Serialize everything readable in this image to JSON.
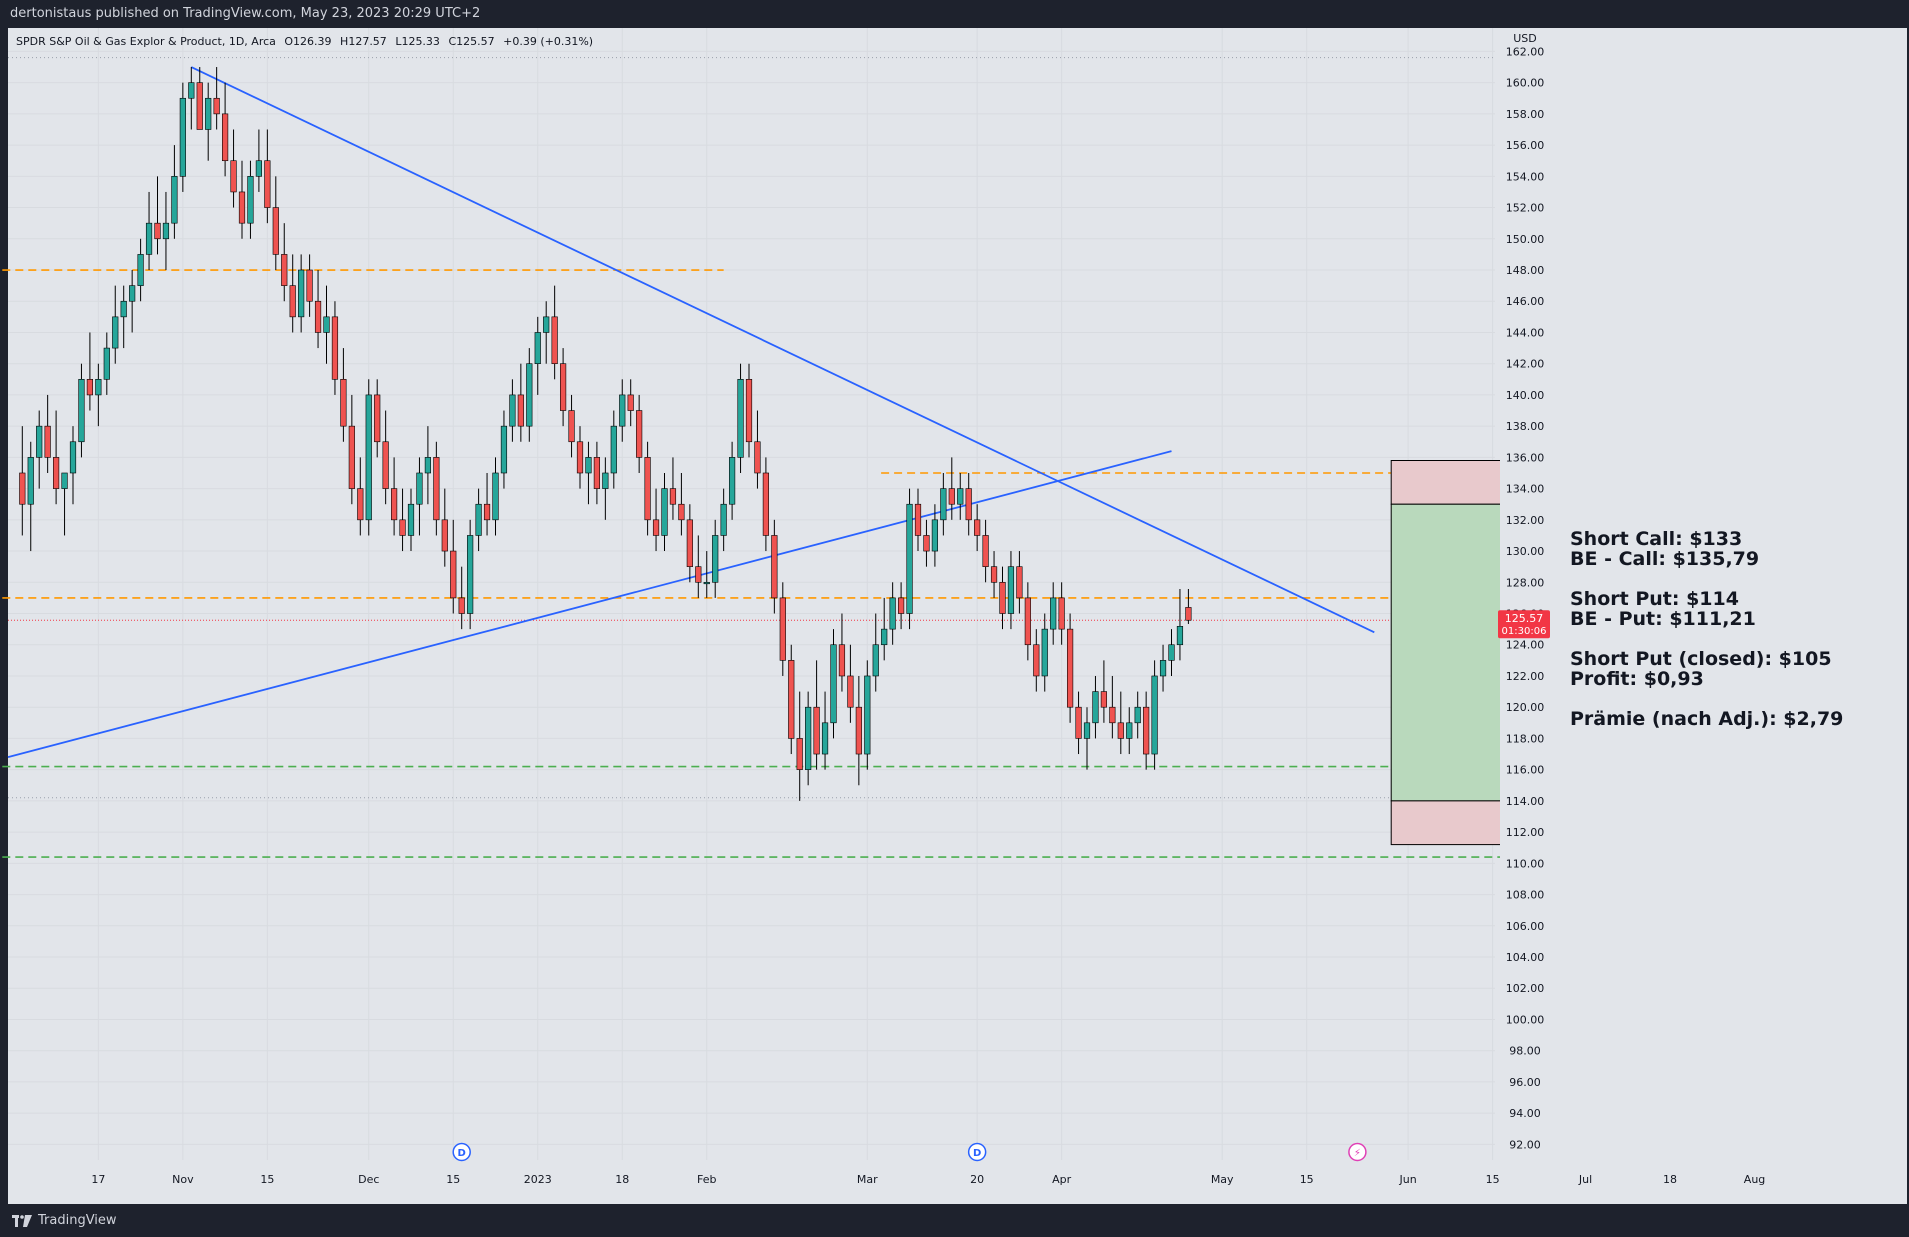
{
  "header": {
    "publisher_line": "dertonistaus published on TradingView.com, May 23, 2023 20:29 UTC+2"
  },
  "legend": {
    "symbol": "SPDR S&P Oil & Gas Explor & Product, 1D, Arca",
    "open": "O126.39",
    "high": "H127.57",
    "low": "L125.33",
    "close": "C125.57",
    "change": "+0.39 (+0.31%)"
  },
  "footer": {
    "brand": "TradingView"
  },
  "price_axis": {
    "currency": "USD",
    "last_price": "125.57",
    "countdown": "01:30:06"
  },
  "annotations": [
    "Short Call: $133",
    "BE - Call: $135,79",
    "Short Put: $114",
    "BE - Put: $111,21",
    "Short Put (closed): $105",
    "Profit: $0,93",
    "Prämie (nach Adj.): $2,79"
  ],
  "colors": {
    "up_candle": "#26a69a",
    "down_candle": "#ef5350",
    "trendline": "#2962ff",
    "resistance_line": "#ff9800",
    "support_line": "#4caf50",
    "last_price_tag": "#f23645",
    "profit_zone": "#b9d9bc",
    "loss_zone": "#e8c9cc"
  },
  "icons": [
    "dividend-marker-icon",
    "earnings-flash-icon",
    "tradingview-logo-icon"
  ],
  "chart_data": {
    "type": "candlestick",
    "title": "SPDR S&P Oil & Gas Explor & Product, 1D, Arca",
    "ylabel": "USD",
    "ylim": [
      91,
      163.5
    ],
    "y_ticks": [
      92,
      94,
      96,
      98,
      100,
      102,
      104,
      106,
      108,
      110,
      112,
      114,
      116,
      118,
      120,
      122,
      124,
      126,
      128,
      130,
      132,
      134,
      136,
      138,
      140,
      142,
      144,
      146,
      148,
      150,
      152,
      154,
      156,
      158,
      160,
      162
    ],
    "x_ticks": [
      {
        "label": "17",
        "i": 9
      },
      {
        "label": "Nov",
        "i": 19
      },
      {
        "label": "15",
        "i": 29
      },
      {
        "label": "Dec",
        "i": 41
      },
      {
        "label": "15",
        "i": 51
      },
      {
        "label": "2023",
        "i": 61
      },
      {
        "label": "18",
        "i": 71
      },
      {
        "label": "Feb",
        "i": 81
      },
      {
        "label": "Mar",
        "i": 100
      },
      {
        "label": "20",
        "i": 113
      },
      {
        "label": "Apr",
        "i": 123
      },
      {
        "label": "May",
        "i": 142
      },
      {
        "label": "15",
        "i": 152
      },
      {
        "label": "Jun",
        "i": 164
      },
      {
        "label": "15",
        "i": 174
      },
      {
        "label": "Jul",
        "i": 185
      },
      {
        "label": "18",
        "i": 195
      },
      {
        "label": "Aug",
        "i": 205
      }
    ],
    "candles": [
      [
        135,
        138,
        131,
        133
      ],
      [
        133,
        137,
        130,
        136
      ],
      [
        136,
        139,
        134,
        138
      ],
      [
        138,
        140,
        135,
        136
      ],
      [
        136,
        139,
        133,
        134
      ],
      [
        134,
        135,
        131,
        135
      ],
      [
        135,
        138,
        133,
        137
      ],
      [
        137,
        142,
        136,
        141
      ],
      [
        141,
        144,
        139,
        140
      ],
      [
        140,
        142,
        138,
        141
      ],
      [
        141,
        144,
        140,
        143
      ],
      [
        143,
        147,
        142,
        145
      ],
      [
        145,
        147,
        143,
        146
      ],
      [
        146,
        148,
        144,
        147
      ],
      [
        147,
        150,
        146,
        149
      ],
      [
        149,
        153,
        148,
        151
      ],
      [
        151,
        154,
        149,
        150
      ],
      [
        150,
        153,
        148,
        151
      ],
      [
        151,
        156,
        150,
        154
      ],
      [
        154,
        160,
        153,
        159
      ],
      [
        159,
        161,
        157,
        160
      ],
      [
        160,
        161,
        157,
        157
      ],
      [
        157,
        160,
        155,
        159
      ],
      [
        159,
        161,
        157,
        158
      ],
      [
        158,
        160,
        154,
        155
      ],
      [
        155,
        157,
        152,
        153
      ],
      [
        153,
        155,
        150,
        151
      ],
      [
        151,
        155,
        150,
        154
      ],
      [
        154,
        157,
        153,
        155
      ],
      [
        155,
        157,
        151,
        152
      ],
      [
        152,
        154,
        148,
        149
      ],
      [
        149,
        151,
        146,
        147
      ],
      [
        147,
        149,
        144,
        145
      ],
      [
        145,
        149,
        144,
        148
      ],
      [
        148,
        149,
        145,
        146
      ],
      [
        146,
        148,
        143,
        144
      ],
      [
        144,
        147,
        142,
        145
      ],
      [
        145,
        146,
        140,
        141
      ],
      [
        141,
        143,
        137,
        138
      ],
      [
        138,
        140,
        133,
        134
      ],
      [
        134,
        136,
        131,
        132
      ],
      [
        132,
        141,
        131,
        140
      ],
      [
        140,
        141,
        136,
        137
      ],
      [
        137,
        139,
        133,
        134
      ],
      [
        134,
        136,
        131,
        132
      ],
      [
        132,
        134,
        130,
        131
      ],
      [
        131,
        134,
        130,
        133
      ],
      [
        133,
        136,
        131,
        135
      ],
      [
        135,
        138,
        133,
        136
      ],
      [
        136,
        137,
        131,
        132
      ],
      [
        132,
        134,
        129,
        130
      ],
      [
        130,
        132,
        126,
        127
      ],
      [
        127,
        129,
        125,
        126
      ],
      [
        126,
        132,
        125,
        131
      ],
      [
        131,
        134,
        130,
        133
      ],
      [
        133,
        135,
        131,
        132
      ],
      [
        132,
        136,
        131,
        135
      ],
      [
        135,
        139,
        134,
        138
      ],
      [
        138,
        141,
        137,
        140
      ],
      [
        140,
        142,
        137,
        138
      ],
      [
        138,
        143,
        137,
        142
      ],
      [
        142,
        145,
        140,
        144
      ],
      [
        144,
        146,
        142,
        145
      ],
      [
        145,
        147,
        141,
        142
      ],
      [
        142,
        143,
        138,
        139
      ],
      [
        139,
        140,
        136,
        137
      ],
      [
        137,
        138,
        134,
        135
      ],
      [
        135,
        137,
        133,
        136
      ],
      [
        136,
        137,
        133,
        134
      ],
      [
        134,
        136,
        132,
        135
      ],
      [
        135,
        139,
        134,
        138
      ],
      [
        138,
        141,
        137,
        140
      ],
      [
        140,
        141,
        138,
        139
      ],
      [
        139,
        140,
        135,
        136
      ],
      [
        136,
        137,
        131,
        132
      ],
      [
        132,
        134,
        130,
        131
      ],
      [
        131,
        135,
        130,
        134
      ],
      [
        134,
        136,
        132,
        133
      ],
      [
        133,
        135,
        131,
        132
      ],
      [
        132,
        133,
        128,
        129
      ],
      [
        129,
        131,
        127,
        128
      ],
      [
        128,
        130,
        127,
        128
      ],
      [
        128,
        132,
        127,
        131
      ],
      [
        131,
        134,
        130,
        133
      ],
      [
        133,
        137,
        132,
        136
      ],
      [
        136,
        142,
        135,
        141
      ],
      [
        141,
        142,
        136,
        137
      ],
      [
        137,
        139,
        134,
        135
      ],
      [
        135,
        136,
        130,
        131
      ],
      [
        131,
        132,
        126,
        127
      ],
      [
        127,
        128,
        122,
        123
      ],
      [
        123,
        124,
        117,
        118
      ],
      [
        118,
        121,
        114,
        116
      ],
      [
        116,
        121,
        115,
        120
      ],
      [
        120,
        123,
        116,
        117
      ],
      [
        117,
        121,
        116,
        119
      ],
      [
        119,
        125,
        118,
        124
      ],
      [
        124,
        126,
        121,
        122
      ],
      [
        122,
        124,
        119,
        120
      ],
      [
        120,
        122,
        115,
        117
      ],
      [
        117,
        123,
        116,
        122
      ],
      [
        122,
        126,
        121,
        124
      ],
      [
        124,
        127,
        123,
        125
      ],
      [
        125,
        128,
        124,
        127
      ],
      [
        127,
        128,
        125,
        126
      ],
      [
        126,
        134,
        125,
        133
      ],
      [
        133,
        134,
        130,
        131
      ],
      [
        131,
        132,
        129,
        130
      ],
      [
        130,
        133,
        129,
        132
      ],
      [
        132,
        135,
        131,
        134
      ],
      [
        134,
        136,
        132,
        133
      ],
      [
        133,
        135,
        132,
        134
      ],
      [
        134,
        135,
        131,
        132
      ],
      [
        132,
        133,
        130,
        131
      ],
      [
        131,
        132,
        128,
        129
      ],
      [
        129,
        130,
        127,
        128
      ],
      [
        128,
        129,
        125,
        126
      ],
      [
        126,
        130,
        125,
        129
      ],
      [
        129,
        130,
        126,
        127
      ],
      [
        127,
        128,
        123,
        124
      ],
      [
        124,
        125,
        121,
        122
      ],
      [
        122,
        126,
        121,
        125
      ],
      [
        125,
        128,
        124,
        127
      ],
      [
        127,
        128,
        124,
        125
      ],
      [
        125,
        126,
        119,
        120
      ],
      [
        120,
        121,
        117,
        118
      ],
      [
        118,
        120,
        116,
        119
      ],
      [
        119,
        122,
        118,
        121
      ],
      [
        121,
        123,
        119,
        120
      ],
      [
        120,
        122,
        118,
        119
      ],
      [
        119,
        121,
        117,
        118
      ],
      [
        118,
        120,
        117,
        119
      ],
      [
        119,
        121,
        118,
        120
      ],
      [
        120,
        121,
        116,
        117
      ],
      [
        117,
        123,
        116,
        122
      ],
      [
        122,
        124,
        121,
        123
      ],
      [
        123,
        125,
        122,
        124
      ],
      [
        124,
        127.57,
        123,
        125.18
      ],
      [
        126.39,
        127.57,
        125.33,
        125.57
      ]
    ],
    "candles_start_index": 0,
    "trendlines": [
      {
        "name": "descending-trendline",
        "from": {
          "i": 20,
          "price": 161.0
        },
        "to": {
          "i": 160,
          "price": 124.8
        }
      },
      {
        "name": "ascending-trendline",
        "from": {
          "i": 0,
          "price": 116.8
        },
        "to": {
          "i": 136,
          "price": 136.4
        }
      }
    ],
    "horizontal_lines": [
      {
        "name": "resistance-line-148",
        "price": 148.0,
        "from_i": 0,
        "to_i": 83,
        "color": "#ff9800"
      },
      {
        "name": "resistance-line-135",
        "price": 135.0,
        "from_i": 104,
        "to_i": 182,
        "color": "#ff9800"
      },
      {
        "name": "resistance-line-127",
        "price": 127.0,
        "from_i": 0,
        "to_i": 182,
        "color": "#ff9800"
      },
      {
        "name": "support-line-116",
        "price": 116.2,
        "from_i": 0,
        "to_i": 182,
        "color": "#4caf50"
      },
      {
        "name": "support-line-110",
        "price": 110.4,
        "from_i": 0,
        "to_i": 182,
        "color": "#4caf50"
      }
    ],
    "position_box": {
      "from_i": 162,
      "to_i": 182,
      "stop_upper": 135.8,
      "entry_upper": 133.0,
      "entry_lower": 114.0,
      "stop_lower": 111.2
    },
    "event_markers": [
      {
        "label": "D",
        "i": 52,
        "kind": "dividend"
      },
      {
        "label": "D",
        "i": 113,
        "kind": "dividend"
      },
      {
        "label": "⚡",
        "i": 158,
        "kind": "earnings"
      }
    ]
  }
}
